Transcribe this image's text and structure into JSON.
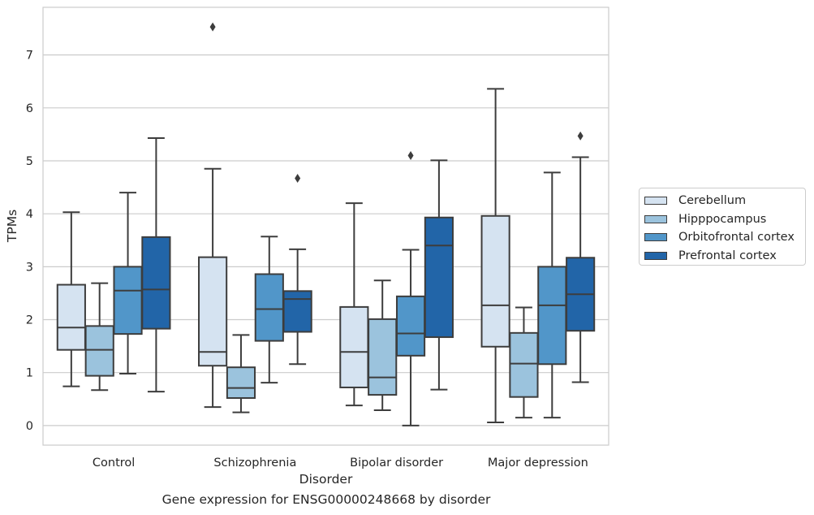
{
  "chart_data": {
    "type": "box",
    "title": "",
    "caption": "Gene expression for ENSG00000248668 by disorder",
    "xlabel": "Disorder",
    "ylabel": "TPMs",
    "ylim": [
      -0.37,
      7.9
    ],
    "yticks": [
      0,
      1,
      2,
      3,
      4,
      5,
      6,
      7
    ],
    "grid": true,
    "legend_position": "center-right",
    "categories": [
      "Control",
      "Schizophrenia",
      "Bipolar disorder",
      "Major depression"
    ],
    "series": [
      {
        "name": "Cerebellum",
        "color": "#d5e3f1",
        "boxes": [
          {
            "category": "Control",
            "whisker_low": 0.74,
            "q1": 1.43,
            "median": 1.85,
            "q3": 2.66,
            "whisker_high": 4.03,
            "outliers": []
          },
          {
            "category": "Schizophrenia",
            "whisker_low": 0.35,
            "q1": 1.13,
            "median": 1.39,
            "q3": 3.18,
            "whisker_high": 4.85,
            "outliers": [
              7.53
            ]
          },
          {
            "category": "Bipolar disorder",
            "whisker_low": 0.38,
            "q1": 0.72,
            "median": 1.39,
            "q3": 2.24,
            "whisker_high": 4.2,
            "outliers": []
          },
          {
            "category": "Major depression",
            "whisker_low": 0.06,
            "q1": 1.49,
            "median": 2.27,
            "q3": 3.96,
            "whisker_high": 6.36,
            "outliers": []
          }
        ]
      },
      {
        "name": "Hipppocampus",
        "color": "#9bc3dd",
        "boxes": [
          {
            "category": "Control",
            "whisker_low": 0.67,
            "q1": 0.94,
            "median": 1.43,
            "q3": 1.88,
            "whisker_high": 2.69,
            "outliers": []
          },
          {
            "category": "Schizophrenia",
            "whisker_low": 0.25,
            "q1": 0.52,
            "median": 0.71,
            "q3": 1.1,
            "whisker_high": 1.71,
            "outliers": []
          },
          {
            "category": "Bipolar disorder",
            "whisker_low": 0.29,
            "q1": 0.58,
            "median": 0.91,
            "q3": 2.01,
            "whisker_high": 2.74,
            "outliers": []
          },
          {
            "category": "Major depression",
            "whisker_low": 0.15,
            "q1": 0.54,
            "median": 1.17,
            "q3": 1.75,
            "whisker_high": 2.23,
            "outliers": []
          }
        ]
      },
      {
        "name": "Orbitofrontal cortex",
        "color": "#5196c9",
        "boxes": [
          {
            "category": "Control",
            "whisker_low": 0.98,
            "q1": 1.73,
            "median": 2.55,
            "q3": 3.0,
            "whisker_high": 4.4,
            "outliers": []
          },
          {
            "category": "Schizophrenia",
            "whisker_low": 0.81,
            "q1": 1.6,
            "median": 2.2,
            "q3": 2.86,
            "whisker_high": 3.57,
            "outliers": []
          },
          {
            "category": "Bipolar disorder",
            "whisker_low": 0.0,
            "q1": 1.32,
            "median": 1.74,
            "q3": 2.44,
            "whisker_high": 3.32,
            "outliers": [
              5.1
            ]
          },
          {
            "category": "Major depression",
            "whisker_low": 0.15,
            "q1": 1.16,
            "median": 2.27,
            "q3": 3.0,
            "whisker_high": 4.78,
            "outliers": []
          }
        ]
      },
      {
        "name": "Prefrontal cortex",
        "color": "#2265a8",
        "boxes": [
          {
            "category": "Control",
            "whisker_low": 0.64,
            "q1": 1.83,
            "median": 2.57,
            "q3": 3.56,
            "whisker_high": 5.43,
            "outliers": []
          },
          {
            "category": "Schizophrenia",
            "whisker_low": 1.16,
            "q1": 1.77,
            "median": 2.39,
            "q3": 2.54,
            "whisker_high": 3.33,
            "outliers": [
              4.67
            ]
          },
          {
            "category": "Bipolar disorder",
            "whisker_low": 0.68,
            "q1": 1.67,
            "median": 3.4,
            "q3": 3.93,
            "whisker_high": 5.01,
            "outliers": []
          },
          {
            "category": "Major depression",
            "whisker_low": 0.82,
            "q1": 1.79,
            "median": 2.48,
            "q3": 3.17,
            "whisker_high": 5.07,
            "outliers": [
              5.47
            ]
          }
        ]
      }
    ]
  }
}
